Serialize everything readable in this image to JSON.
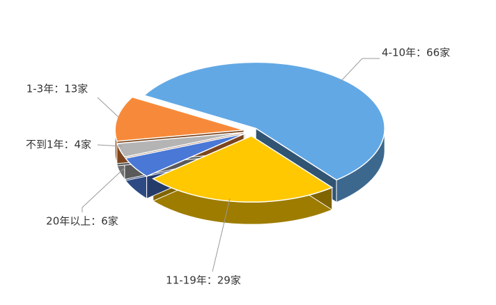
{
  "chart_data": {
    "type": "pie3d",
    "values": [
      66,
      29,
      6,
      4,
      13
    ],
    "value_labels": [
      "4-10年：66家",
      "11-19年：29家",
      "20年以上：6家",
      "不到1年：4家",
      "1-3年：13家"
    ],
    "colors": [
      "#62a8e5",
      "#ffc800",
      "#4a78d6",
      "#b4b4b4",
      "#f78a3a"
    ]
  }
}
